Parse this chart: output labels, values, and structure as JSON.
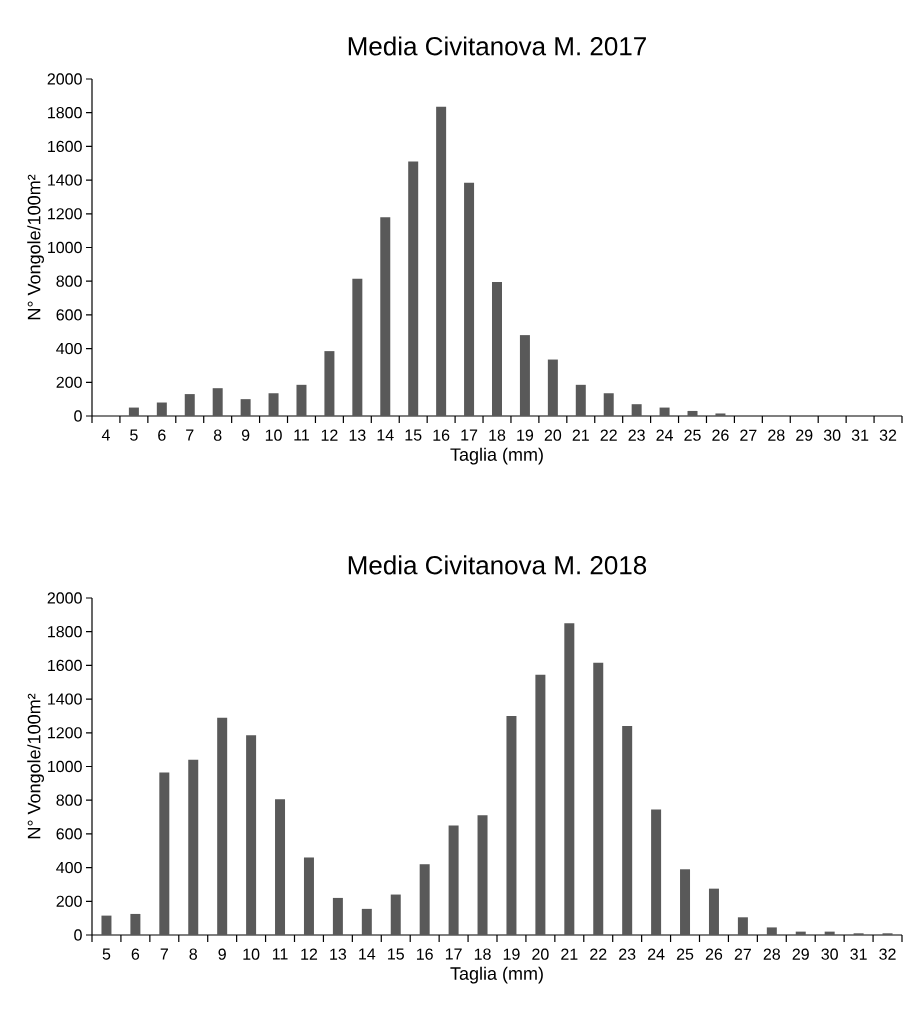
{
  "chart_data": [
    {
      "type": "bar",
      "title": "Media Civitanova M. 2017",
      "xlabel": "Taglia (mm)",
      "ylabel": "N° Vongole/100m²",
      "color": "#595959",
      "categories": [
        "4",
        "5",
        "6",
        "7",
        "8",
        "9",
        "10",
        "11",
        "12",
        "13",
        "14",
        "15",
        "16",
        "17",
        "18",
        "19",
        "20",
        "21",
        "22",
        "23",
        "24",
        "25",
        "26",
        "27",
        "28",
        "29",
        "30",
        "31",
        "32"
      ],
      "values": [
        0,
        50,
        80,
        130,
        165,
        100,
        135,
        185,
        385,
        815,
        1180,
        1510,
        1835,
        1385,
        795,
        480,
        335,
        185,
        135,
        70,
        50,
        30,
        15,
        0,
        0,
        0,
        0,
        0,
        0
      ],
      "ylim": [
        0,
        2000
      ],
      "yticks": [
        0,
        200,
        400,
        600,
        800,
        1000,
        1200,
        1400,
        1600,
        1800,
        2000
      ]
    },
    {
      "type": "bar",
      "title": "Media Civitanova M. 2018",
      "xlabel": "Taglia (mm)",
      "ylabel": "N° Vongole/100m²",
      "color": "#595959",
      "categories": [
        "5",
        "6",
        "7",
        "8",
        "9",
        "10",
        "11",
        "12",
        "13",
        "14",
        "15",
        "16",
        "17",
        "18",
        "19",
        "20",
        "21",
        "22",
        "23",
        "24",
        "25",
        "26",
        "27",
        "28",
        "29",
        "30",
        "31",
        "32"
      ],
      "values": [
        115,
        125,
        965,
        1040,
        1290,
        1185,
        805,
        460,
        220,
        155,
        240,
        420,
        650,
        710,
        1300,
        1545,
        1850,
        1615,
        1240,
        745,
        390,
        275,
        105,
        45,
        20,
        20,
        10,
        10
      ],
      "ylim": [
        0,
        2000
      ],
      "yticks": [
        0,
        200,
        400,
        600,
        800,
        1000,
        1200,
        1400,
        1600,
        1800,
        2000
      ]
    }
  ]
}
